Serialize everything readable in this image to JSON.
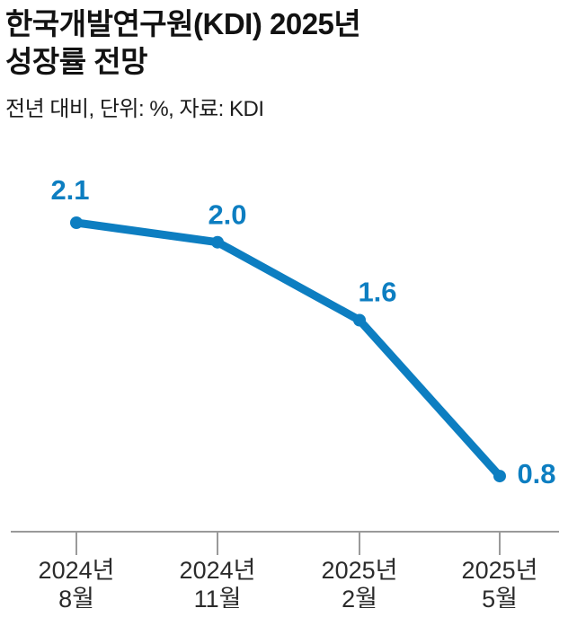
{
  "header": {
    "title_line1": "한국개발연구원(KDI) 2025년",
    "title_line2": "성장률 전망",
    "subtitle": "전년 대비, 단위: %, 자료: KDI"
  },
  "chart_data": {
    "type": "line",
    "title": "한국개발연구원(KDI) 2025년 성장률 전망",
    "subtitle": "전년 대비, 단위: %, 자료: KDI",
    "unit": "%",
    "source": "KDI",
    "categories": [
      [
        "2024년",
        "8월"
      ],
      [
        "2024년",
        "11월"
      ],
      [
        "2025년",
        "2월"
      ],
      [
        "2025년",
        "5월"
      ]
    ],
    "values": [
      2.1,
      2.0,
      1.6,
      0.8
    ],
    "value_labels": [
      "2.1",
      "2.0",
      "1.6",
      "0.8"
    ],
    "ylim": [
      0.5,
      2.3
    ],
    "grid": "off",
    "legend": "none",
    "line_color": "#0d7ec1",
    "label_color": "#0d7ec1",
    "axis_color": "#9a9a9a",
    "tick_text_color": "#2b2b2b"
  }
}
